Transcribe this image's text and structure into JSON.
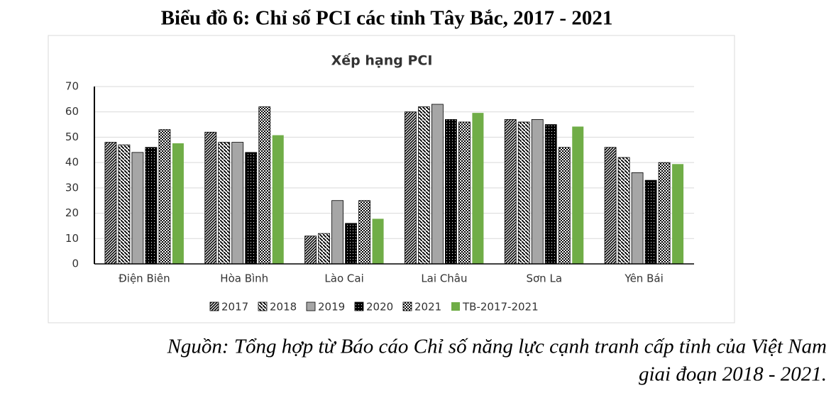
{
  "heading": "Biểu đồ 6: Chỉ số PCI các tỉnh Tây Bắc, 2017 - 2021",
  "chart_data": {
    "type": "bar",
    "title": "Xếp hạng PCI",
    "categories": [
      "Điện Biên",
      "Hòa Bình",
      "Lào Cai",
      "Lai Châu",
      "Sơn La",
      "Yên Bái"
    ],
    "series": [
      {
        "name": "2017",
        "color": "#000000",
        "pattern": "diagonal",
        "values": [
          48,
          52,
          11,
          60,
          57,
          46
        ]
      },
      {
        "name": "2018",
        "color": "#000000",
        "pattern": "diagonal-light",
        "values": [
          47,
          48,
          12,
          62,
          56,
          42
        ]
      },
      {
        "name": "2019",
        "color": "#a6a6a6",
        "pattern": "solid",
        "values": [
          44,
          48,
          25,
          63,
          57,
          36
        ]
      },
      {
        "name": "2020",
        "color": "#000000",
        "pattern": "dots",
        "values": [
          46,
          44,
          16,
          57,
          55,
          33
        ]
      },
      {
        "name": "2021",
        "color": "#000000",
        "pattern": "checker",
        "values": [
          53,
          62,
          25,
          56,
          46,
          40
        ]
      },
      {
        "name": "TB-2017-2021",
        "color": "#70ad47",
        "pattern": "solid",
        "values": [
          47.6,
          50.8,
          17.8,
          59.6,
          54.2,
          39.4
        ]
      }
    ],
    "ylim": [
      0,
      70
    ],
    "yticks": [
      0,
      10,
      20,
      30,
      40,
      50,
      60,
      70
    ],
    "grid": true,
    "legend": "bottom"
  },
  "source_lines": [
    "Nguồn: Tổng hợp từ Báo cáo Chỉ số năng lực cạnh tranh cấp tỉnh của Việt Nam",
    "giai đoạn 2018 - 2021."
  ]
}
